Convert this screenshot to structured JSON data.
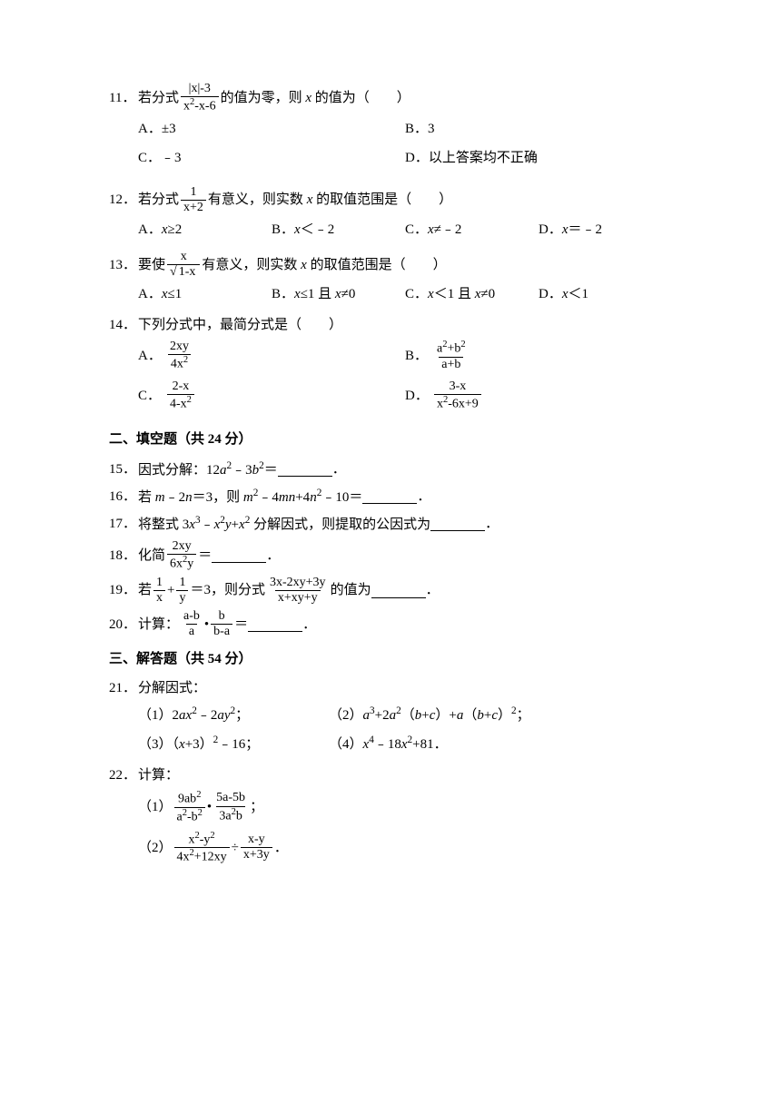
{
  "q11": {
    "num": "11．",
    "text_pre": "若分式",
    "frac_num": "|x|-3",
    "frac_den_html": "x<sup>2</sup>-x-6",
    "text_post": "的值为零，则 <span class='italic'>x</span> 的值为（　　）",
    "opts": {
      "A": "A．±3",
      "B": "B．3",
      "C": "C．﹣3",
      "D": "D．以上答案均不正确"
    }
  },
  "q12": {
    "num": "12．",
    "text_pre": "若分式",
    "frac_num": "1",
    "frac_den": "x+2",
    "text_post": "有意义，则实数 <span class='italic'>x</span> 的取值范围是（　　）",
    "opts": {
      "A": "A．<span class='italic'>x</span>≥2",
      "B": "B．<span class='italic'>x</span>＜﹣2",
      "C": "C．<span class='italic'>x</span>≠﹣2",
      "D": "D．<span class='italic'>x</span>＝﹣2"
    }
  },
  "q13": {
    "num": "13．",
    "text_pre": "要使",
    "frac_num": "x",
    "frac_den_sqrt": "1-x",
    "text_post": "有意义，则实数 <span class='italic'>x</span> 的取值范围是（　　）",
    "opts": {
      "A": "A．<span class='italic'>x</span>≤1",
      "B": "B．<span class='italic'>x</span>≤1 且 <span class='italic'>x</span>≠0",
      "C": "C．<span class='italic'>x</span>＜1 且 <span class='italic'>x</span>≠0",
      "D": "D．<span class='italic'>x</span>＜1"
    }
  },
  "q14": {
    "num": "14．",
    "text": "下列分式中，最简分式是（　　）",
    "opts": {
      "A_num": "2xy",
      "A_den": "4x<sup>2</sup>",
      "B_num": "a<sup>2</sup>+b<sup>2</sup>",
      "B_den": "a+b",
      "C_num": "2-x",
      "C_den": "4-x<sup>2</sup>",
      "D_num": "3-x",
      "D_den": "x<sup>2</sup>-6x+9"
    }
  },
  "section2": "二、填空题（共 24 分）",
  "q15": {
    "num": "15．",
    "text": "因式分解：12<span class='italic'>a</span><sup>2</sup>﹣3<span class='italic'>b</span><sup>2</sup>＝"
  },
  "q16": {
    "num": "16．",
    "text": "若 <span class='italic'>m</span>﹣2<span class='italic'>n</span>＝3，则 <span class='italic'>m</span><sup>2</sup>﹣4<span class='italic'>mn</span>+4<span class='italic'>n</span><sup>2</sup>﹣10＝"
  },
  "q17": {
    "num": "17．",
    "text": "将整式 3<span class='italic'>x</span><sup>3</sup>﹣<span class='italic'>x</span><sup>2</sup><span class='italic'>y</span>+<span class='italic'>x</span><sup>2</sup> 分解因式，则提取的公因式为"
  },
  "q18": {
    "num": "18．",
    "pre": "化简",
    "frac_num": "2xy",
    "frac_den": "6x<sup>2</sup>y",
    "post": "＝"
  },
  "q19": {
    "num": "19．",
    "pre": "若",
    "f1n": "1",
    "f1d": "x",
    "plus": "+",
    "f2n": "1",
    "f2d": "y",
    "mid": "＝3，则分式",
    "f3n": "3x-2xy+3y",
    "f3d": "x+xy+y",
    "post": "的值为"
  },
  "q20": {
    "num": "20．",
    "pre": "计算：",
    "f1n": "a-b",
    "f1d": "a",
    "dot": "•",
    "f2n": "b",
    "f2d": "b-a",
    "post": "＝"
  },
  "section3": "三、解答题（共 54 分）",
  "q21": {
    "num": "21．",
    "text": "分解因式：",
    "s1": "（1）2<span class='italic'>ax</span><sup>2</sup>﹣2<span class='italic'>ay</span><sup>2</sup>；",
    "s2": "（2）<span class='italic'>a</span><sup>3</sup>+2<span class='italic'>a</span><sup>2</sup>（<span class='italic'>b</span>+<span class='italic'>c</span>）+<span class='italic'>a</span>（<span class='italic'>b</span>+<span class='italic'>c</span>）<sup>2</sup>；",
    "s3": "（3）（<span class='italic'>x</span>+3）<sup>2</sup>﹣16；",
    "s4": "（4）<span class='italic'>x</span><sup>4</sup>﹣18<span class='italic'>x</span><sup>2</sup>+81．"
  },
  "q22": {
    "num": "22．",
    "text": "计算：",
    "s1_pre": "（1）",
    "s1_f1n": "9ab<sup>2</sup>",
    "s1_f1d": "a<sup>2</sup>-b<sup>2</sup>",
    "s1_f2n": "5a-5b",
    "s1_f2d": "3a<sup>2</sup>b",
    "s2_pre": "（2）",
    "s2_f1n": "x<sup>2</sup>-y<sup>2</sup>",
    "s2_f1d": "4x<sup>2</sup>+12xy",
    "s2_f2n": "x-y",
    "s2_f2d": "x+3y"
  },
  "period": "．",
  "semicolon": "；"
}
